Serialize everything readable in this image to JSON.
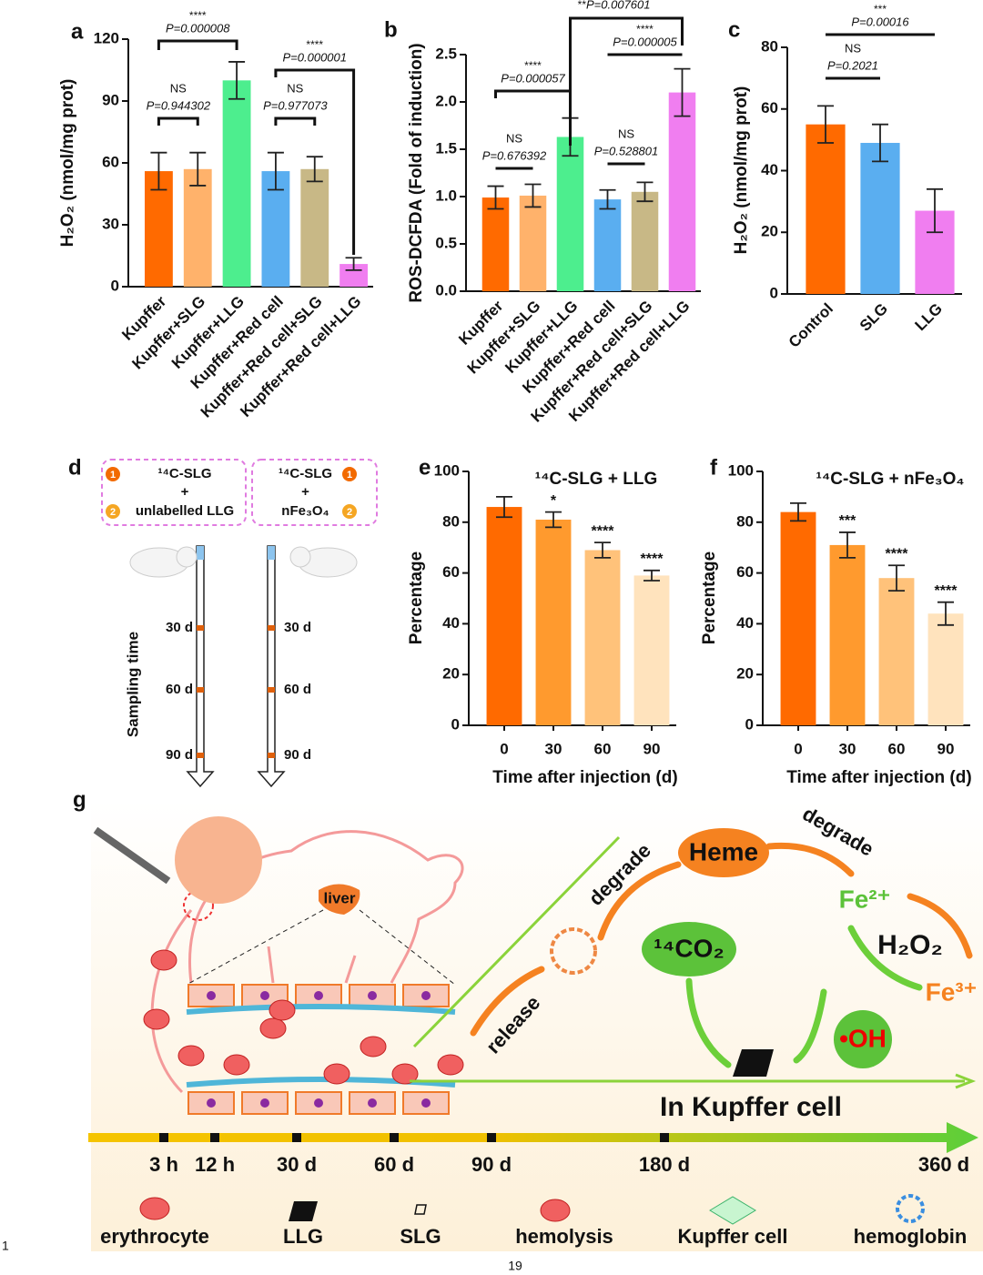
{
  "chart_data": [
    {
      "panel": "a",
      "type": "bar",
      "y_label": "H₂O₂ (nmol/mg prot)",
      "categories": [
        "Kupffer",
        "Kupffer+SLG",
        "Kupffer+LLG",
        "Kupffer+Red cell",
        "Kupffer+Red cell+SLG",
        "Kupffer+Red cell+LLG"
      ],
      "values": [
        56,
        57,
        100,
        56,
        57,
        11
      ],
      "errors": [
        9,
        8,
        9,
        9,
        6,
        3
      ],
      "colors": [
        "#ff6a00",
        "#ffb26b",
        "#4dee8e",
        "#5aaef0",
        "#c8b886",
        "#f07ef0"
      ],
      "ylim": [
        0,
        120
      ],
      "yticks": [
        0,
        30,
        60,
        90,
        120
      ],
      "annotations": [
        {
          "stars": "****",
          "p": "P=0.000008"
        },
        {
          "stars": "NS",
          "p": "P=0.944302"
        },
        {
          "stars": "NS",
          "p": "P=0.977073"
        },
        {
          "stars": "****",
          "p": "P=0.000001"
        }
      ]
    },
    {
      "panel": "b",
      "type": "bar",
      "y_label": "ROS-DCFDA (Fold of induction)",
      "categories": [
        "Kupffer",
        "Kupffer+SLG",
        "Kupffer+LLG",
        "Kupffer+Red cell",
        "Kupffer+Red cell+SLG",
        "Kupffer+Red cell+LLG"
      ],
      "values": [
        0.99,
        1.01,
        1.63,
        0.97,
        1.05,
        2.1
      ],
      "errors": [
        0.12,
        0.12,
        0.2,
        0.1,
        0.1,
        0.25
      ],
      "colors": [
        "#ff6a00",
        "#ffb26b",
        "#4dee8e",
        "#5aaef0",
        "#c8b886",
        "#f07ef0"
      ],
      "ylim": [
        0,
        2.5
      ],
      "yticks": [
        {
          "value": 0,
          "label": "0.0"
        },
        {
          "value": 0.5,
          "label": "0.5"
        },
        {
          "value": 1,
          "label": "1.0"
        },
        {
          "value": 1.5,
          "label": "1.5"
        },
        {
          "value": 2,
          "label": "2.0"
        },
        {
          "value": 2.5,
          "label": "2.5"
        }
      ],
      "annotations": [
        {
          "stars": "NS",
          "p": "P=0.676392"
        },
        {
          "stars": "****",
          "p": "P=0.000057"
        },
        {
          "stars": "NS",
          "p": "P=0.528801"
        },
        {
          "stars": "****",
          "p": "P=0.000005"
        },
        {
          "stars": "**",
          "p": "P=0.007601"
        }
      ]
    },
    {
      "panel": "c",
      "type": "bar",
      "y_label": "H₂O₂ (nmol/mg prot)",
      "categories": [
        "Control",
        "SLG",
        "LLG"
      ],
      "values": [
        55,
        49,
        27
      ],
      "errors": [
        6,
        6,
        7
      ],
      "colors": [
        "#ff6a00",
        "#5aaef0",
        "#f07ef0"
      ],
      "ylim": [
        0,
        80
      ],
      "yticks": [
        0,
        20,
        40,
        60,
        80
      ],
      "annotations": [
        {
          "stars": "NS",
          "p": "P=0.2021"
        },
        {
          "stars": "***",
          "p": "P=0.00016"
        }
      ]
    },
    {
      "panel": "e",
      "type": "bar",
      "title": "¹⁴C-SLG + LLG",
      "x_label": "Time after injection (d)",
      "y_label": "Percentage",
      "categories": [
        "0",
        "30",
        "60",
        "90"
      ],
      "values": [
        86,
        81,
        69,
        59
      ],
      "errors": [
        4,
        3,
        3,
        2
      ],
      "stars": [
        null,
        "*",
        "****",
        "****"
      ],
      "colors": [
        "#ff6a00",
        "#ff9a2e",
        "#ffc27a",
        "#ffe3bd"
      ],
      "ylim": [
        0,
        100
      ],
      "yticks": [
        0,
        20,
        40,
        60,
        80,
        100
      ]
    },
    {
      "panel": "f",
      "type": "bar",
      "title": "¹⁴C-SLG + nFe₃O₄",
      "x_label": "Time after injection (d)",
      "y_label": "Percentage",
      "categories": [
        "0",
        "30",
        "60",
        "90"
      ],
      "values": [
        84,
        71,
        58,
        44
      ],
      "errors": [
        3.5,
        5,
        5,
        4.5
      ],
      "stars": [
        null,
        "***",
        "****",
        "****"
      ],
      "colors": [
        "#ff6a00",
        "#ff9a2e",
        "#ffc27a",
        "#ffe3bd"
      ],
      "ylim": [
        0,
        100
      ],
      "yticks": [
        0,
        20,
        40,
        60,
        80,
        100
      ]
    }
  ],
  "panel_d": {
    "label": "d",
    "groups": [
      {
        "badges": [
          "1",
          "2"
        ],
        "lines": [
          "¹⁴C-SLG",
          "+",
          "unlabelled LLG"
        ]
      },
      {
        "badges": [
          "1",
          "2"
        ],
        "lines": [
          "¹⁴C-SLG",
          "+",
          "nFe₃O₄"
        ]
      }
    ],
    "axis_label": "Sampling time",
    "times": [
      "30 d",
      "60 d",
      "90 d"
    ]
  },
  "panel_g": {
    "label": "g",
    "liver": "liver",
    "degrade_1": "degrade",
    "heme": "Heme",
    "degrade_2": "degrade",
    "fe2": "Fe²⁺",
    "h2o2": "H₂O₂",
    "fe3": "Fe³⁺",
    "co2": "¹⁴CO₂",
    "oh": "•OH",
    "release": "release",
    "cell": "In  Kupffer cell",
    "timeline": [
      "3 h",
      "12 h",
      "30 d",
      "60 d",
      "90 d",
      "180 d",
      "360 d"
    ],
    "legend": [
      "erythrocyte",
      "LLG",
      "SLG",
      "hemolysis",
      "Kupffer cell",
      "hemoglobin"
    ]
  },
  "page": {
    "line_number": "1",
    "page_number": "19"
  }
}
